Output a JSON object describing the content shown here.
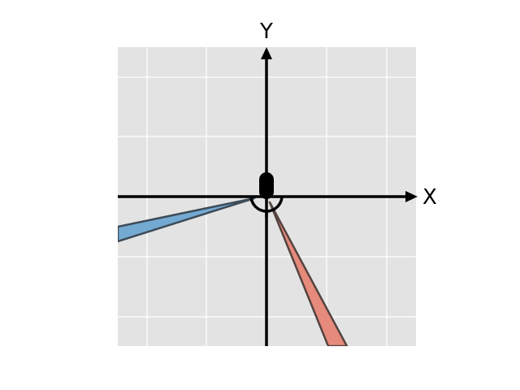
{
  "diagram": {
    "axes": {
      "x_label": "X",
      "y_label": "Y"
    },
    "plot_background": "#e3e3e3",
    "grid": true,
    "grid_color": "#ffffff",
    "axis_color": "#000000",
    "wedges": [
      {
        "name": "blue-wedge",
        "fill": "#74aad2",
        "stroke": "#3d4b57"
      },
      {
        "name": "red-wedge",
        "fill": "#e68a7c",
        "stroke": "#55433f"
      }
    ],
    "origin_marker": {
      "color": "#000000"
    }
  }
}
